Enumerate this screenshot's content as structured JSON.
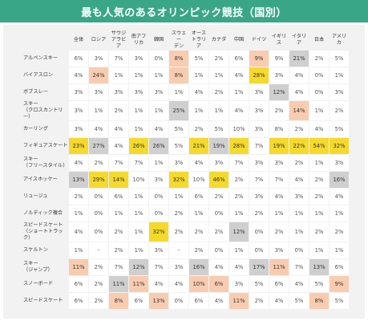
{
  "title": "最も人気のあるオリンピック競技（国別）",
  "colors": {
    "header": "#3aa688",
    "yellow": "#f5d92d",
    "orange": "#f9ccb0",
    "gray": "#cfcfcf"
  },
  "chart_data": {
    "type": "table",
    "title": "最も人気のあるオリンピック競技（国別）",
    "columns": [
      "全体",
      "ロシア",
      "サウジ\nアラビア",
      "南アフ\nリカ",
      "韓国",
      "スウェー\nデン",
      "オース\nトラリア",
      "カナダ",
      "中国",
      "ドイツ",
      "イギリス",
      "イタリア",
      "日本",
      "アメリカ"
    ],
    "rows": [
      {
        "label": "アルペンスキー",
        "values": [
          "6%",
          "3%",
          "7%",
          "3%",
          "0%",
          "8%",
          "5%",
          "2%",
          "6%",
          "9%",
          "9%",
          "21%",
          "2%",
          "5%"
        ],
        "highlight": [
          "",
          "",
          "",
          "",
          "",
          "o",
          "",
          "",
          "",
          "o",
          "",
          "g",
          "",
          ""
        ]
      },
      {
        "label": "バイアスロン",
        "values": [
          "4%",
          "24%",
          "1%",
          "1%",
          "1%",
          "8%",
          "1%",
          "1%",
          "4%",
          "28%",
          "3%",
          "4%",
          "0%",
          "1%"
        ],
        "highlight": [
          "",
          "o",
          "",
          "",
          "",
          "o",
          "",
          "",
          "",
          "y",
          "",
          "",
          "",
          ""
        ]
      },
      {
        "label": "ボブスレー",
        "values": [
          "3%",
          "3%",
          "3%",
          "3%",
          "3%",
          "1%",
          "4%",
          "2%",
          "1%",
          "3%",
          "12%",
          "4%",
          "0%",
          "3%"
        ],
        "highlight": [
          "",
          "",
          "",
          "",
          "",
          "",
          "",
          "",
          "",
          "",
          "g",
          "",
          "",
          ""
        ]
      },
      {
        "label": "スキー\n（クロスカントリー）",
        "values": [
          "3%",
          "1%",
          "2%",
          "1%",
          "1%",
          "25%",
          "1%",
          "1%",
          "4%",
          "3%",
          "2%",
          "14%",
          "1%",
          "2%"
        ],
        "highlight": [
          "",
          "",
          "",
          "",
          "",
          "g",
          "",
          "",
          "",
          "",
          "",
          "o",
          "",
          ""
        ]
      },
      {
        "label": "カーリング",
        "values": [
          "3%",
          "4%",
          "4%",
          "1%",
          "4%",
          "5%",
          "2%",
          "5%",
          "10%",
          "3%",
          "8%",
          "2%",
          "4%",
          "5%"
        ],
        "highlight": [
          "",
          "",
          "",
          "",
          "",
          "",
          "",
          "",
          "",
          "",
          "",
          "",
          "",
          ""
        ]
      },
      {
        "label": "フィギュアスケート",
        "values": [
          "23%",
          "27%",
          "4%",
          "26%",
          "26%",
          "5%",
          "21%",
          "19%",
          "28%",
          "7%",
          "19%",
          "22%",
          "54%",
          "32%"
        ],
        "highlight": [
          "y",
          "g",
          "",
          "y",
          "g",
          "",
          "y",
          "g",
          "y",
          "",
          "y",
          "y",
          "y",
          "y"
        ]
      },
      {
        "label": "スキー\n（フリースタイル）",
        "values": [
          "4%",
          "2%",
          "7%",
          "7%",
          "1%",
          "3%",
          "4%",
          "3%",
          "7%",
          "3%",
          "3%",
          "2%",
          "1%",
          "3%"
        ],
        "highlight": [
          "",
          "",
          "",
          "",
          "",
          "",
          "",
          "",
          "",
          "",
          "",
          "",
          "",
          ""
        ]
      },
      {
        "label": "アイスホッケー",
        "values": [
          "13%",
          "29%",
          "14%",
          "10%",
          "3%",
          "32%",
          "10%",
          "46%",
          "2%",
          "7%",
          "7%",
          "4%",
          "2%",
          "16%"
        ],
        "highlight": [
          "g",
          "y",
          "y",
          "",
          "",
          "y",
          "",
          "y",
          "",
          "",
          "",
          "",
          "",
          "g"
        ]
      },
      {
        "label": "リュージュ",
        "values": [
          "2%",
          "0%",
          "6%",
          "1%",
          "0%",
          "1%",
          "6%",
          "2%",
          "2%",
          "3%",
          "4%",
          "3%",
          "2%",
          "4%"
        ],
        "highlight": [
          "",
          "",
          "",
          "",
          "",
          "",
          "",
          "",
          "",
          "",
          "",
          "",
          "",
          ""
        ]
      },
      {
        "label": "ノルディック複合",
        "values": [
          "1%",
          "0%",
          "1%",
          "1%",
          "0%",
          "2%",
          "1%",
          "0%",
          "1%",
          "2%",
          "1%",
          "1%",
          "1%",
          "1%"
        ],
        "highlight": [
          "",
          "",
          "",
          "",
          "",
          "",
          "",
          "",
          "",
          "",
          "",
          "",
          "",
          ""
        ]
      },
      {
        "label": "スピードスケート\n（ショートトラック）",
        "values": [
          "4%",
          "0%",
          "2%",
          "1%",
          "32%",
          "2%",
          "2%",
          "2%",
          "12%",
          "0%",
          "2%",
          "1%",
          "2%",
          "2%"
        ],
        "highlight": [
          "",
          "",
          "",
          "",
          "y",
          "",
          "",
          "",
          "g",
          "",
          "",
          "",
          "",
          ""
        ]
      },
      {
        "label": "スケルトン",
        "values": [
          "1%",
          "-",
          "2%",
          "1%",
          "3%",
          "-",
          "2%",
          "0%",
          "1%",
          "0%",
          "3%",
          "0%",
          "1%",
          "1%"
        ],
        "highlight": [
          "",
          "",
          "",
          "",
          "",
          "",
          "",
          "",
          "",
          "",
          "",
          "",
          "",
          ""
        ]
      },
      {
        "label": "スキー\n（ジャンプ）",
        "values": [
          "11%",
          "2%",
          "7%",
          "12%",
          "7%",
          "3%",
          "16%",
          "4%",
          "4%",
          "17%",
          "11%",
          "7%",
          "13%",
          "6%"
        ],
        "highlight": [
          "o",
          "",
          "",
          "g",
          "",
          "",
          "g",
          "",
          "",
          "g",
          "o",
          "",
          "g",
          ""
        ]
      },
      {
        "label": "スノーボード",
        "values": [
          "6%",
          "2%",
          "11%",
          "11%",
          "4%",
          "4%",
          "10%",
          "6%",
          "3%",
          "5%",
          "6%",
          "4%",
          "5%",
          "9%"
        ],
        "highlight": [
          "",
          "",
          "g",
          "o",
          "",
          "",
          "o",
          "o",
          "",
          "",
          "",
          "",
          "",
          "o"
        ]
      },
      {
        "label": "スピードスケート",
        "values": [
          "6%",
          "2%",
          "8%",
          "6%",
          "13%",
          "0%",
          "6%",
          "4%",
          "11%",
          "2%",
          "4%",
          "5%",
          "8%",
          "5%"
        ],
        "highlight": [
          "",
          "",
          "o",
          "",
          "o",
          "",
          "",
          "",
          "o",
          "",
          "",
          "",
          "o",
          ""
        ]
      }
    ]
  }
}
